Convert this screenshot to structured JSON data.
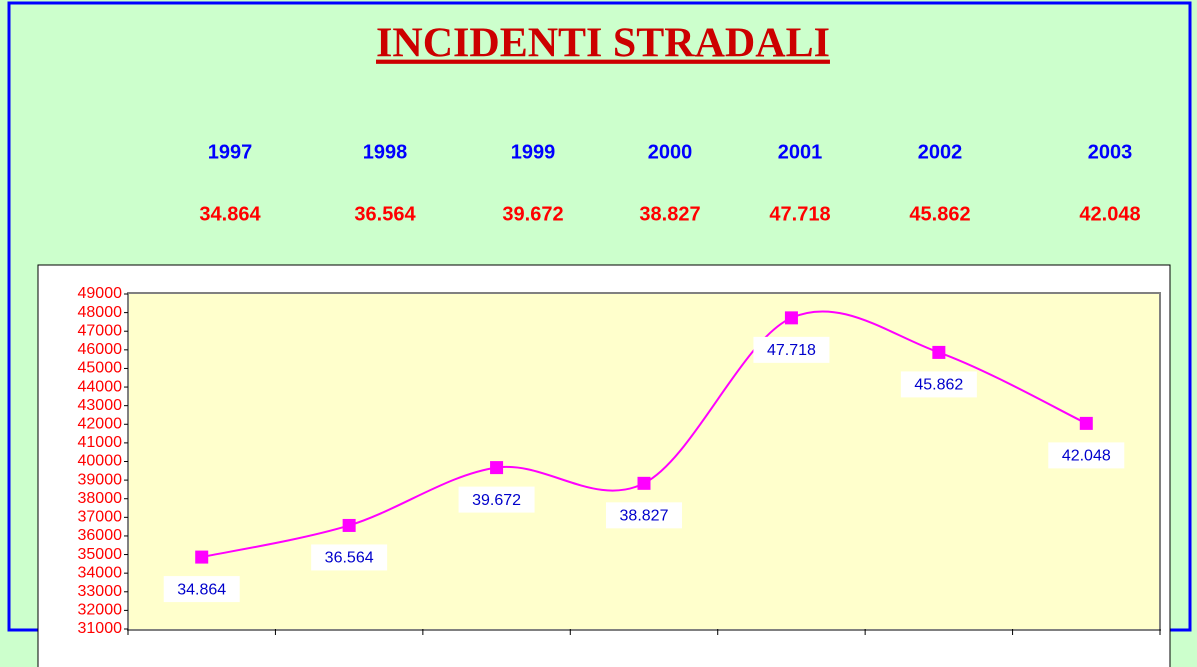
{
  "chart_data": {
    "type": "line",
    "title": "INCIDENTI STRADALI",
    "categories": [
      "1997",
      "1998",
      "1999",
      "2000",
      "2001",
      "2002",
      "2003"
    ],
    "values": [
      34864,
      36564,
      39672,
      38827,
      47718,
      45862,
      42048
    ],
    "value_labels": [
      "34.864",
      "36.564",
      "39.672",
      "38.827",
      "47.718",
      "45.862",
      "42.048"
    ],
    "color": "#ff00ff",
    "ylim": [
      31000,
      49000
    ],
    "yticks": [
      31000,
      32000,
      33000,
      34000,
      35000,
      36000,
      37000,
      38000,
      39000,
      40000,
      41000,
      42000,
      43000,
      44000,
      45000,
      46000,
      47000,
      48000,
      49000
    ],
    "grid": false
  }
}
